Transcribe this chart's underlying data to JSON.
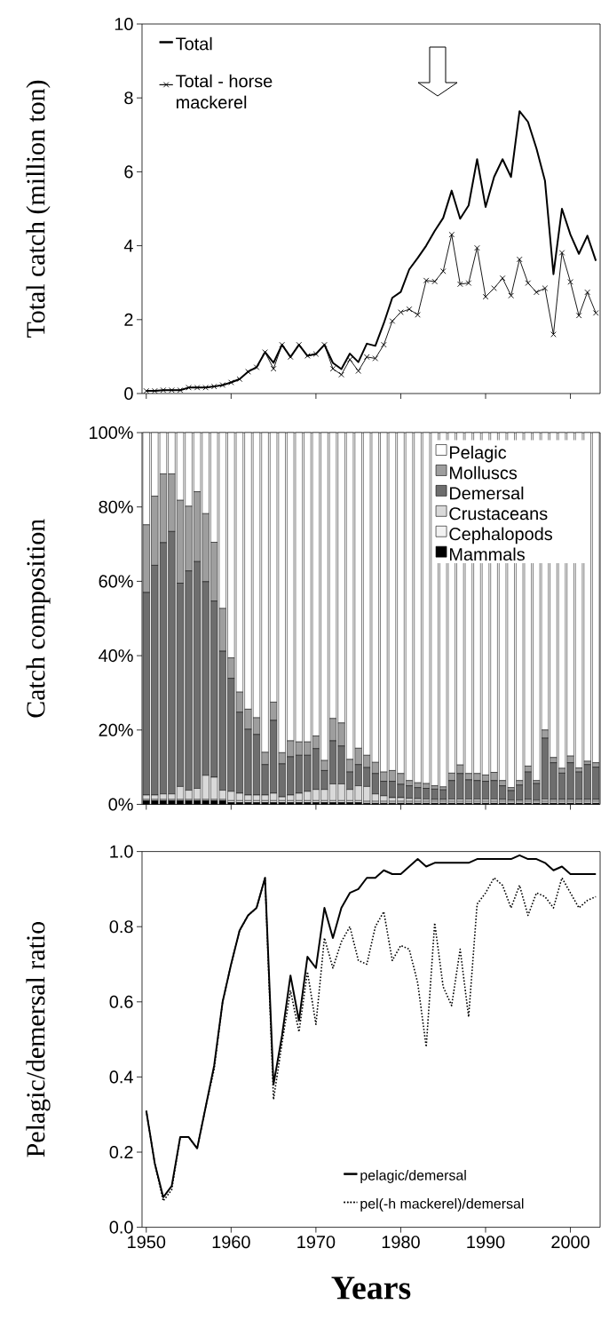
{
  "chart_data": [
    {
      "type": "line",
      "ylabel": "Total catch (million ton)",
      "x": [
        1950,
        1951,
        1952,
        1953,
        1954,
        1955,
        1956,
        1957,
        1958,
        1959,
        1960,
        1961,
        1962,
        1963,
        1964,
        1965,
        1966,
        1967,
        1968,
        1969,
        1970,
        1971,
        1972,
        1973,
        1974,
        1975,
        1976,
        1977,
        1978,
        1979,
        1980,
        1981,
        1982,
        1983,
        1984,
        1985,
        1986,
        1987,
        1988,
        1989,
        1990,
        1991,
        1992,
        1993,
        1994,
        1995,
        1996,
        1997,
        1998,
        1999,
        2000,
        2001,
        2002,
        2003
      ],
      "series": [
        {
          "name": "Total",
          "color": "#000000",
          "values": [
            0.07,
            0.07,
            0.09,
            0.09,
            0.09,
            0.16,
            0.16,
            0.16,
            0.19,
            0.23,
            0.3,
            0.39,
            0.59,
            0.71,
            1.12,
            0.83,
            1.32,
            0.99,
            1.32,
            1.02,
            1.07,
            1.32,
            0.83,
            0.66,
            1.08,
            0.85,
            1.35,
            1.29,
            1.9,
            2.59,
            2.75,
            3.36,
            3.67,
            4.0,
            4.4,
            4.75,
            5.49,
            4.73,
            5.09,
            6.34,
            5.05,
            5.86,
            6.34,
            5.86,
            7.64,
            7.35,
            6.63,
            5.76,
            3.23,
            5.0,
            4.3,
            3.78,
            4.27,
            3.59
          ]
        },
        {
          "name": "Total - horse mackerel",
          "color": "#000000",
          "marker": "cross",
          "values": [
            0.07,
            0.07,
            0.09,
            0.09,
            0.09,
            0.16,
            0.16,
            0.16,
            0.19,
            0.23,
            0.3,
            0.39,
            0.59,
            0.71,
            1.12,
            0.67,
            1.32,
            0.99,
            1.32,
            1.02,
            1.07,
            1.32,
            0.67,
            0.51,
            0.92,
            0.61,
            0.99,
            0.95,
            1.32,
            1.96,
            2.2,
            2.28,
            2.13,
            3.06,
            3.03,
            3.31,
            4.3,
            2.96,
            2.99,
            3.94,
            2.62,
            2.85,
            3.12,
            2.65,
            3.63,
            2.99,
            2.74,
            2.85,
            1.6,
            3.81,
            3.02,
            2.11,
            2.74,
            2.18
          ]
        }
      ],
      "xlim": [
        1949.5,
        2003.5
      ],
      "xticks": [
        1950,
        1960,
        1970,
        1980,
        1990,
        2000
      ],
      "ylim": [
        0,
        10
      ],
      "yticks": [
        0,
        2,
        4,
        6,
        8,
        10
      ],
      "tick_labels": "y",
      "legend": "top left"
    },
    {
      "type": "bar",
      "stacked": true,
      "ylabel": "Catch composition",
      "x": [
        1950,
        1951,
        1952,
        1953,
        1954,
        1955,
        1956,
        1957,
        1958,
        1959,
        1960,
        1961,
        1962,
        1963,
        1964,
        1965,
        1966,
        1967,
        1968,
        1969,
        1970,
        1971,
        1972,
        1973,
        1974,
        1975,
        1976,
        1977,
        1978,
        1979,
        1980,
        1981,
        1982,
        1983,
        1984,
        1985,
        1986,
        1987,
        1988,
        1989,
        1990,
        1991,
        1992,
        1993,
        1994,
        1995,
        1996,
        1997,
        1998,
        1999,
        2000,
        2001,
        2002,
        2003
      ],
      "series": [
        {
          "name": "Mammals",
          "color": "#000000",
          "values": [
            1.0,
            1.0,
            1.0,
            1.0,
            1.0,
            1.0,
            1.0,
            1.0,
            1.0,
            1.0,
            0.5,
            0.5,
            0.5,
            0.5,
            0.5,
            0.5,
            0.5,
            0.5,
            0.5,
            0.5,
            0.5,
            0.5,
            0.5,
            0.5,
            0.5,
            0.5,
            0.3,
            0.3,
            0.3,
            0.3,
            0.3,
            0.3,
            0.3,
            0.3,
            0.3,
            0.3,
            0.3,
            0.3,
            0.3,
            0.3,
            0.3,
            0.3,
            0.3,
            0.3,
            0.3,
            0.3,
            0.3,
            0.3,
            0.3,
            0.3,
            0.3,
            0.3,
            0.3,
            0.3
          ]
        },
        {
          "name": "Cephalopods",
          "color": "#f2f2f2",
          "values": [
            0.3,
            0.3,
            0.3,
            0.3,
            0.3,
            0.3,
            0.3,
            0.3,
            0.3,
            0.3,
            0.5,
            0.5,
            0.5,
            0.5,
            0.5,
            0.5,
            0.5,
            0.5,
            0.5,
            0.5,
            0.5,
            0.5,
            0.5,
            0.5,
            0.5,
            0.5,
            0.5,
            0.5,
            0.5,
            0.5,
            0.5,
            0.5,
            0.5,
            0.5,
            0.5,
            0.5,
            0.5,
            0.5,
            0.5,
            0.5,
            0.5,
            0.5,
            0.5,
            0.5,
            0.5,
            0.5,
            0.5,
            0.5,
            0.5,
            0.5,
            0.5,
            0.5,
            0.5,
            0.5
          ]
        },
        {
          "name": "Crustaceans",
          "color": "#d9d9d9",
          "values": [
            1.2,
            1.2,
            1.5,
            1.5,
            3.5,
            2.5,
            3,
            6.5,
            6,
            2.5,
            2.5,
            2,
            1.5,
            1.5,
            1.5,
            2,
            1,
            1.5,
            2,
            2.5,
            3,
            3,
            4.5,
            4.5,
            3,
            4,
            4,
            2,
            1.5,
            1,
            1,
            0.8,
            0.7,
            0.6,
            0.5,
            0.5,
            0.6,
            0.6,
            0.6,
            0.6,
            0.6,
            0.6,
            0.5,
            0.4,
            0.4,
            0.5,
            0.4,
            0.6,
            0.5,
            0.5,
            0.5,
            0.5,
            0.5,
            0.5
          ]
        },
        {
          "name": "Demersal",
          "color": "#6e6e6e",
          "values": [
            54.5,
            61.8,
            67.6,
            70.6,
            54.7,
            59.0,
            61.0,
            52.1,
            47.4,
            37.4,
            30.4,
            21.8,
            17.7,
            16.3,
            8.2,
            19.6,
            8.9,
            10.3,
            10.2,
            9.7,
            11.0,
            5.1,
            11.6,
            10.2,
            4.7,
            5.7,
            5.1,
            5.5,
            3.9,
            4.4,
            3.6,
            3.4,
            3.0,
            2.9,
            2.8,
            2.6,
            5.0,
            6.9,
            5.2,
            5.0,
            4.8,
            5.0,
            3.7,
            2.5,
            4.0,
            7.4,
            4.4,
            16.4,
            9.9,
            7.1,
            9.9,
            7.4,
            9.4,
            8.7
          ]
        },
        {
          "name": "Molluscs",
          "color": "#9e9e9e",
          "values": [
            18.2,
            18.6,
            18.5,
            15.5,
            22.3,
            17.4,
            18.8,
            18.3,
            15.8,
            11.5,
            5.5,
            5.4,
            5.4,
            4.5,
            3.3,
            4.9,
            3.0,
            4.3,
            3.6,
            3.6,
            3.4,
            2.7,
            6.0,
            6.2,
            3.4,
            4.4,
            3.3,
            3.0,
            2.5,
            2.9,
            2.9,
            1.4,
            1.3,
            1.3,
            0.9,
            0.8,
            2.0,
            2.3,
            1.7,
            1.9,
            1.7,
            2.2,
            1.4,
            0.8,
            1.2,
            1.6,
            0.8,
            2.2,
            1.4,
            1.3,
            1.8,
            1.1,
            0.9,
            1.2
          ]
        },
        {
          "name": "Pelagic",
          "color": "#ffffff",
          "values": [
            24.8,
            17.1,
            11.1,
            11.1,
            18.2,
            19.8,
            15.9,
            21.8,
            29.5,
            47.3,
            60.6,
            69.8,
            74.4,
            76.7,
            86.0,
            72.5,
            86.1,
            82.9,
            83.2,
            83.2,
            81.6,
            88.2,
            76.9,
            78.1,
            87.9,
            84.9,
            86.8,
            88.7,
            91.3,
            90.9,
            91.7,
            93.6,
            94.2,
            94.4,
            95.0,
            95.3,
            91.6,
            89.4,
            91.7,
            91.7,
            92.1,
            91.4,
            93.6,
            95.5,
            93.6,
            89.7,
            93.6,
            80.0,
            87.4,
            90.3,
            87.0,
            90.2,
            88.4,
            88.8
          ]
        }
      ],
      "xlim": [
        1949.5,
        2003.5
      ],
      "xticks": [
        1950,
        1960,
        1970,
        1980,
        1990,
        2000
      ],
      "ylim": [
        0,
        100
      ],
      "yticks": [
        {
          "value": 0,
          "label": "0%"
        },
        {
          "value": 20,
          "label": "20%"
        },
        {
          "value": 40,
          "label": "40%"
        },
        {
          "value": 60,
          "label": "60%"
        },
        {
          "value": 80,
          "label": "80%"
        },
        {
          "value": 100,
          "label": "100%"
        }
      ],
      "tick_labels": "y",
      "legend": "top right"
    },
    {
      "type": "line",
      "ylabel": "Pelagic/demersal ratio",
      "xlabel": "Years",
      "x": [
        1950,
        1951,
        1952,
        1953,
        1954,
        1955,
        1956,
        1957,
        1958,
        1959,
        1960,
        1961,
        1962,
        1963,
        1964,
        1965,
        1966,
        1967,
        1968,
        1969,
        1970,
        1971,
        1972,
        1973,
        1974,
        1975,
        1976,
        1977,
        1978,
        1979,
        1980,
        1981,
        1982,
        1983,
        1984,
        1985,
        1986,
        1987,
        1988,
        1989,
        1990,
        1991,
        1992,
        1993,
        1994,
        1995,
        1996,
        1997,
        1998,
        1999,
        2000,
        2001,
        2002,
        2003
      ],
      "series": [
        {
          "name": "pelagic/demersal",
          "color": "#000000",
          "values": [
            0.31,
            0.17,
            0.08,
            0.11,
            0.24,
            0.24,
            0.21,
            0.32,
            0.43,
            0.6,
            0.7,
            0.79,
            0.83,
            0.85,
            0.93,
            0.38,
            0.51,
            0.67,
            0.55,
            0.72,
            0.69,
            0.85,
            0.77,
            0.85,
            0.89,
            0.9,
            0.93,
            0.93,
            0.95,
            0.94,
            0.94,
            0.96,
            0.98,
            0.96,
            0.97,
            0.97,
            0.97,
            0.97,
            0.97,
            0.98,
            0.98,
            0.98,
            0.98,
            0.98,
            0.99,
            0.98,
            0.98,
            0.97,
            0.95,
            0.96,
            0.94,
            0.94,
            0.94,
            0.94
          ]
        },
        {
          "name": "pel(-h mackerel)/demersal",
          "color": "#000000",
          "line_style": "dotted",
          "values": [
            0.31,
            0.17,
            0.07,
            0.1,
            0.24,
            0.24,
            0.21,
            0.32,
            0.42,
            0.6,
            0.7,
            0.79,
            0.83,
            0.85,
            0.93,
            0.34,
            0.49,
            0.63,
            0.52,
            0.68,
            0.54,
            0.77,
            0.69,
            0.76,
            0.8,
            0.71,
            0.7,
            0.8,
            0.84,
            0.71,
            0.75,
            0.74,
            0.65,
            0.48,
            0.81,
            0.64,
            0.59,
            0.74,
            0.56,
            0.86,
            0.89,
            0.93,
            0.91,
            0.85,
            0.91,
            0.83,
            0.89,
            0.88,
            0.85,
            0.93,
            0.89,
            0.85,
            0.87,
            0.88
          ]
        }
      ],
      "xlim": [
        1949.5,
        2003.5
      ],
      "xticks": [
        1950,
        1960,
        1970,
        1980,
        1990,
        2000
      ],
      "ylim": [
        0,
        1
      ],
      "yticks": [
        {
          "value": 0,
          "label": "0.0"
        },
        {
          "value": 0.2,
          "label": "0.2"
        },
        {
          "value": 0.4,
          "label": "0.4"
        },
        {
          "value": 0.6,
          "label": "0.6"
        },
        {
          "value": 0.8,
          "label": "0.8"
        },
        {
          "value": 1,
          "label": "1.0"
        }
      ],
      "legend": "bottom right"
    }
  ]
}
